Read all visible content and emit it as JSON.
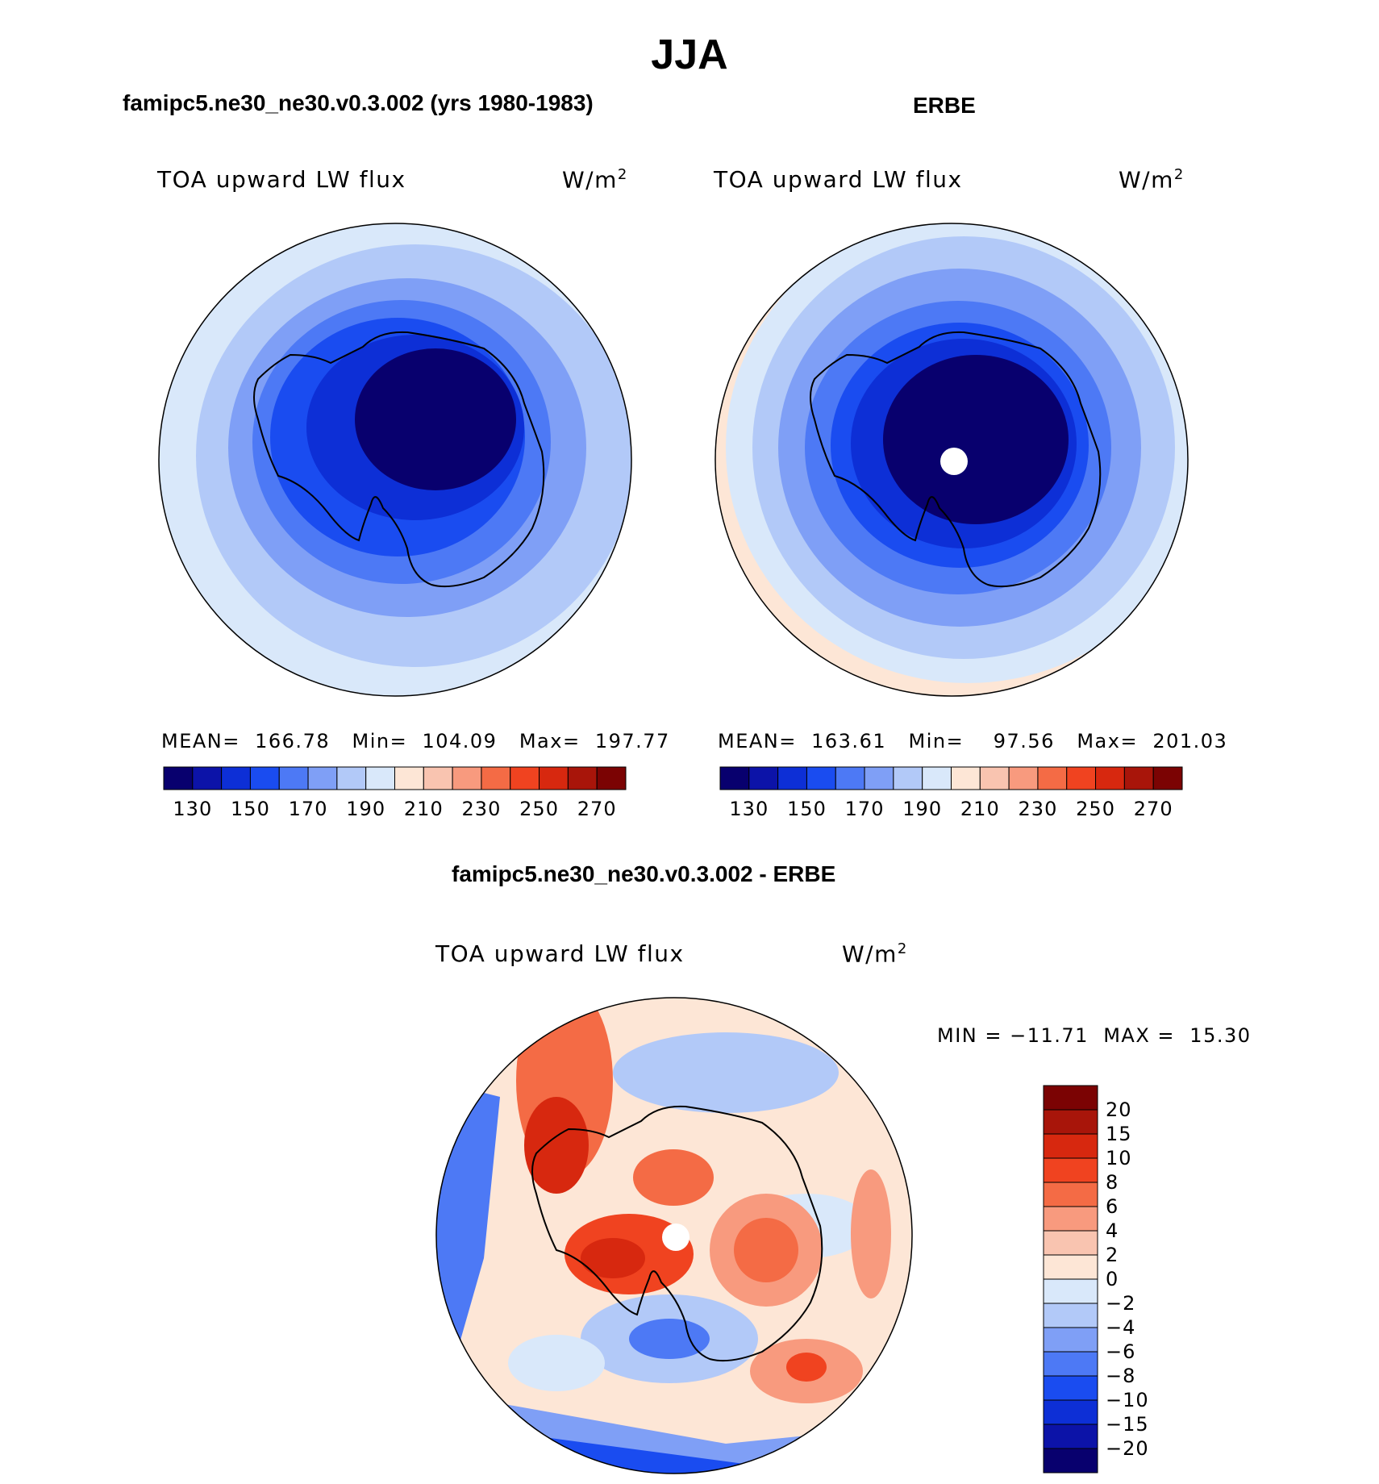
{
  "figure": {
    "season": "JJA"
  },
  "panels": [
    {
      "title": "famipc5.ne30_ne30.v0.3.002 (yrs 1980-1983)",
      "variable": "TOA upward LW flux",
      "units": "W/m",
      "units_sup": "2",
      "stats": {
        "mean_label": "MEAN=",
        "mean": "166.78",
        "min_label": "Min=",
        "min": "104.09",
        "max_label": "Max=",
        "max": "197.77"
      }
    },
    {
      "title": "ERBE",
      "variable": "TOA upward LW flux",
      "units": "W/m",
      "units_sup": "2",
      "stats": {
        "mean_label": "MEAN=",
        "mean": "163.61",
        "min_label": "Min=",
        "min": "97.56",
        "max_label": "Max=",
        "max": "201.03"
      }
    },
    {
      "title": "famipc5.ne30_ne30.v0.3.002 - ERBE",
      "variable": "TOA upward LW flux",
      "units": "W/m",
      "units_sup": "2",
      "stats": {
        "min_label": "MIN =",
        "min": "−11.71",
        "max_label": "MAX =",
        "max": "15.30"
      }
    }
  ],
  "colorbars": {
    "absolute": {
      "labels": [
        "130",
        "150",
        "170",
        "190",
        "210",
        "230",
        "250",
        "270"
      ],
      "colors": [
        "#08006e",
        "#0c13a8",
        "#0d2fd6",
        "#1a4cf0",
        "#4d79f5",
        "#7f9ff6",
        "#b2c9f8",
        "#d9e8fa",
        "#fde6d6",
        "#f9c4b0",
        "#f89a7e",
        "#f46b45",
        "#f04320",
        "#d7280f",
        "#a8150a",
        "#7b0303"
      ]
    },
    "difference": {
      "labels": [
        "20",
        "15",
        "10",
        "8",
        "6",
        "4",
        "2",
        "0",
        "−2",
        "−4",
        "−6",
        "−8",
        "−10",
        "−15",
        "−20"
      ],
      "colors": [
        "#7b0303",
        "#a8150a",
        "#d7280f",
        "#f04320",
        "#f46b45",
        "#f89a7e",
        "#f9c4b0",
        "#fde6d6",
        "#d9e8fa",
        "#b2c9f8",
        "#7f9ff6",
        "#4d79f5",
        "#1a4cf0",
        "#0d2fd6",
        "#0c13a8",
        "#08006e"
      ]
    }
  }
}
